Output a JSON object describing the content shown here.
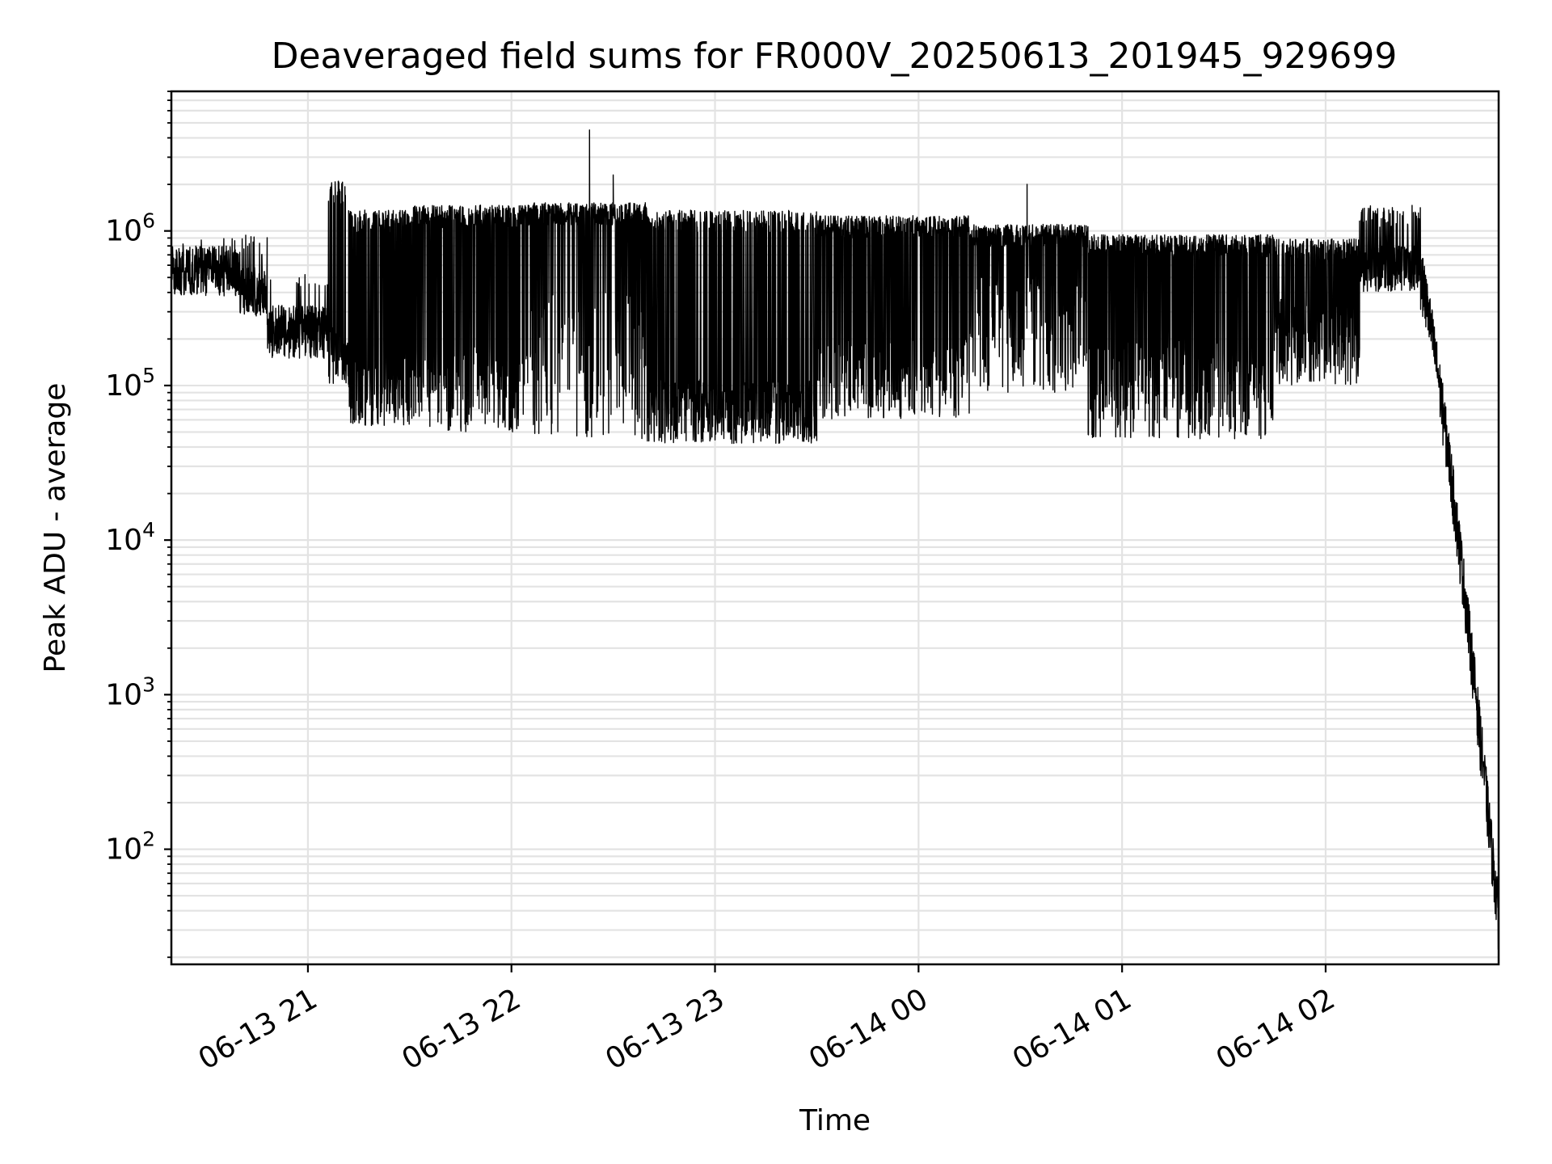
{
  "chart_data": {
    "type": "line",
    "title": "Deaveraged field sums for FR000V_20250613_201945_929699",
    "xlabel": "Time",
    "ylabel": "Peak ADU - average",
    "yscale": "log",
    "xlim": [
      "2025-06-13T20:19:45",
      "2025-06-14T02:51:00"
    ],
    "ylim": [
      18,
      8000000
    ],
    "grid": "on (major and minor)",
    "line_color": "#000000",
    "x_ticks": [
      {
        "label": "06-13 21",
        "t": "2025-06-13T21:00:00"
      },
      {
        "label": "06-13 22",
        "t": "2025-06-13T22:00:00"
      },
      {
        "label": "06-13 23",
        "t": "2025-06-13T23:00:00"
      },
      {
        "label": "06-14 00",
        "t": "2025-06-14T00:00:00"
      },
      {
        "label": "06-14 01",
        "t": "2025-06-14T01:00:00"
      },
      {
        "label": "06-14 02",
        "t": "2025-06-14T02:00:00"
      }
    ],
    "y_ticks": [
      {
        "base": "10",
        "exp": "2",
        "value": 100
      },
      {
        "base": "10",
        "exp": "3",
        "value": 1000
      },
      {
        "base": "10",
        "exp": "4",
        "value": 10000
      },
      {
        "base": "10",
        "exp": "5",
        "value": 100000
      },
      {
        "base": "10",
        "exp": "6",
        "value": 1000000
      }
    ],
    "series": [
      {
        "segments": [
          {
            "start": "2025-06-13T20:19:45",
            "end": "2025-06-13T20:40:00",
            "low": 380000,
            "high": 800000,
            "spike_prob": 0.05,
            "spike_to": 900000
          },
          {
            "start": "2025-06-13T20:40:00",
            "end": "2025-06-13T20:48:00",
            "low": 280000,
            "high": 600000,
            "spike_prob": 0.05,
            "spike_to": 900000
          },
          {
            "start": "2025-06-13T20:48:00",
            "end": "2025-06-13T21:06:00",
            "low": 150000,
            "high": 330000,
            "spike_prob": 0.04,
            "spike_to": 500000
          },
          {
            "start": "2025-06-13T21:06:00",
            "end": "2025-06-13T21:12:00",
            "low": 100000,
            "high": 250000,
            "spike_prob": 0.3,
            "spike_to": 2000000
          },
          {
            "start": "2025-06-13T21:12:00",
            "end": "2025-06-13T21:30:00",
            "low": 55000,
            "high": 150000,
            "spike_prob": 0.45,
            "spike_to": 1300000
          },
          {
            "start": "2025-06-13T21:30:00",
            "end": "2025-06-13T22:05:00",
            "low": 50000,
            "high": 180000,
            "spike_prob": 0.6,
            "spike_to": 1400000
          },
          {
            "start": "2025-06-13T22:05:00",
            "end": "2025-06-13T22:40:00",
            "low": 45000,
            "high": 400000,
            "spike_prob": 0.75,
            "spike_to": 1450000
          },
          {
            "start": "2025-06-13T22:40:00",
            "end": "2025-06-13T23:30:00",
            "low": 42000,
            "high": 110000,
            "spike_prob": 0.4,
            "spike_to": 1300000
          },
          {
            "start": "2025-06-13T23:30:00",
            "end": "2025-06-14T00:15:00",
            "low": 60000,
            "high": 200000,
            "spike_prob": 0.6,
            "spike_to": 1200000
          },
          {
            "start": "2025-06-14T00:15:00",
            "end": "2025-06-14T00:50:00",
            "low": 90000,
            "high": 500000,
            "spike_prob": 0.7,
            "spike_to": 1050000
          },
          {
            "start": "2025-06-14T00:50:00",
            "end": "2025-06-14T01:45:00",
            "low": 45000,
            "high": 200000,
            "spike_prob": 0.6,
            "spike_to": 900000
          },
          {
            "start": "2025-06-14T01:45:00",
            "end": "2025-06-14T02:10:00",
            "low": 100000,
            "high": 400000,
            "spike_prob": 0.4,
            "spike_to": 850000
          },
          {
            "start": "2025-06-14T02:10:00",
            "end": "2025-06-14T02:28:00",
            "low": 400000,
            "high": 800000,
            "spike_prob": 0.2,
            "spike_to": 1400000
          },
          {
            "start": "2025-06-14T02:28:00",
            "end": "2025-06-14T02:51:00",
            "decay_from": 500000,
            "decay_to": 35,
            "spike_prob": 0.1,
            "spike_to": 0
          }
        ],
        "notable_points": [
          {
            "t": "2025-06-13T22:23:00",
            "value": 4500000
          },
          {
            "t": "2025-06-13T22:30:00",
            "value": 2300000
          },
          {
            "t": "2025-06-14T00:32:00",
            "value": 2000000
          },
          {
            "t": "2025-06-13T21:07:00",
            "value": 2050000
          },
          {
            "t": "2025-06-13T21:09:00",
            "value": 2100000
          }
        ]
      }
    ]
  }
}
